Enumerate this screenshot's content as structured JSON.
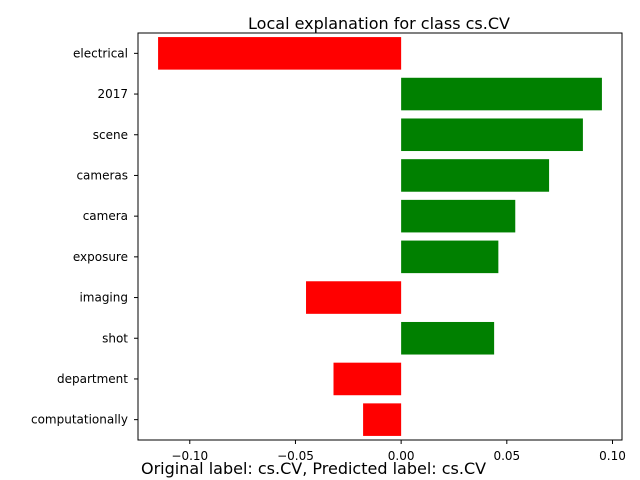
{
  "caption": "Original label: cs.CV, Predicted label: cs.CV",
  "colors": {
    "positive": "#008000",
    "negative": "#ff0000"
  },
  "chart_data": {
    "type": "bar",
    "orientation": "horizontal",
    "title": "Local explanation for class cs.CV",
    "xlabel": "",
    "ylabel": "",
    "xlim": [
      -0.1245,
      0.1045
    ],
    "xticks": [
      -0.1,
      -0.05,
      0.0,
      0.05,
      0.1
    ],
    "xtick_labels": [
      "−0.10",
      "−0.05",
      "0.00",
      "0.05",
      "0.10"
    ],
    "grid": false,
    "categories": [
      "electrical",
      "2017",
      "scene",
      "cameras",
      "camera",
      "exposure",
      "imaging",
      "shot",
      "department",
      "computationally"
    ],
    "values": [
      -0.115,
      0.095,
      0.086,
      0.07,
      0.054,
      0.046,
      -0.045,
      0.044,
      -0.032,
      -0.018
    ]
  }
}
